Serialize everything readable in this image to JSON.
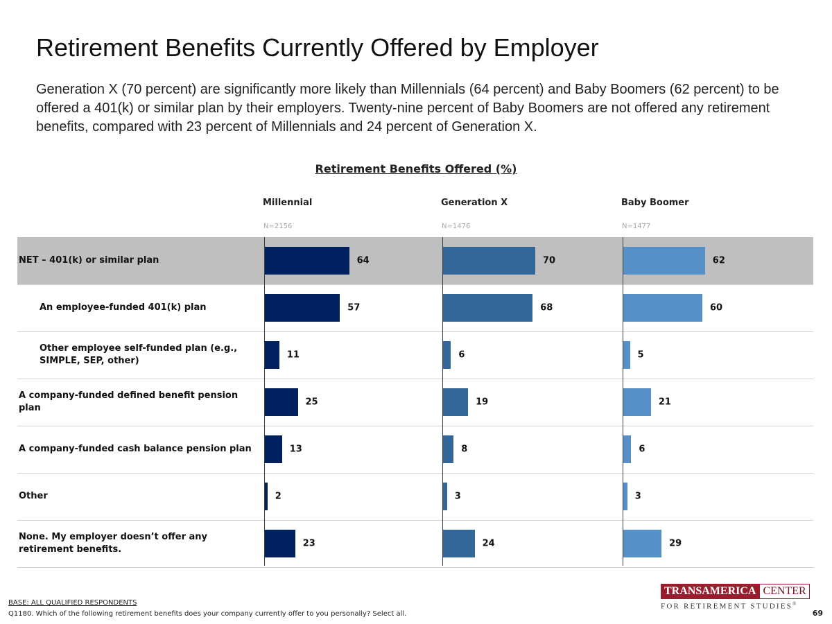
{
  "page": {
    "title": "Retirement Benefits Currently Offered by Employer",
    "subtitle": "Generation X (70 percent) are significantly more likely than Millennials (64 percent) and Baby Boomers (62 percent) to be offered a 401(k) or similar plan by their employers. Twenty-nine percent of Baby Boomers are not offered any retirement benefits, compared with 23 percent of Millennials and 24 percent of Generation X.",
    "base_note": "BASE: ALL QUALIFIED RESPONDENTS",
    "question": "Q1180. Which of the following retirement benefits does your company currently offer to you personally? Select all.",
    "page_number": "69",
    "logo": {
      "left": "TRANSAMERICA",
      "right": "CENTER",
      "bottom": "FOR RETIREMENT STUDIES",
      "mark": "®"
    }
  },
  "chart_data": {
    "type": "bar",
    "orientation": "horizontal",
    "title": "Retirement Benefits Offered (%)",
    "categories": [
      "NET – 401(k) or similar plan",
      "An employee-funded 401(k) plan",
      "Other employee self-funded plan (e.g., SIMPLE, SEP, other)",
      "A company-funded defined benefit pension plan",
      "A company-funded cash balance pension plan",
      "Other",
      "None. My employer doesn’t offer any retirement benefits."
    ],
    "indented": [
      false,
      true,
      true,
      false,
      false,
      false,
      false
    ],
    "highlighted_row": 0,
    "xlim": [
      0,
      100
    ],
    "series": [
      {
        "name": "Millennial",
        "n": "N=2156",
        "color": "#002060",
        "values": [
          64,
          57,
          11,
          25,
          13,
          2,
          23
        ]
      },
      {
        "name": "Generation X",
        "n": "N=1476",
        "color": "#336699",
        "values": [
          70,
          68,
          6,
          19,
          8,
          3,
          24
        ]
      },
      {
        "name": "Baby Boomer",
        "n": "N=1477",
        "color": "#5590c8",
        "values": [
          62,
          60,
          5,
          21,
          6,
          3,
          29
        ]
      }
    ]
  }
}
